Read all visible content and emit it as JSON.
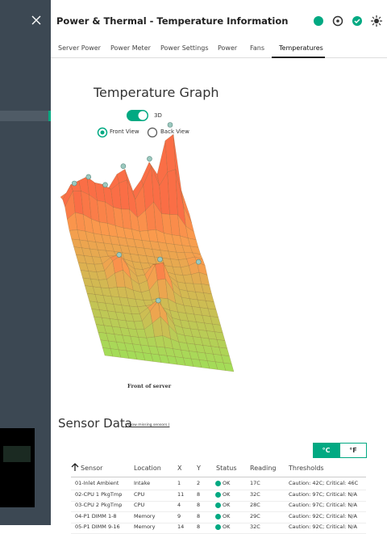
{
  "header": {
    "title": "Power & Thermal - Temperature Information"
  },
  "tabs": [
    "Server Power",
    "Power Meter",
    "Power Settings",
    "Power",
    "Fans",
    "Temperatures"
  ],
  "active_tab": "Temperatures",
  "graph": {
    "title": "Temperature Graph",
    "toggle_label": "3D",
    "views": [
      "Front View",
      "Back View"
    ],
    "caption": "Front of server"
  },
  "sensor_data": {
    "title": "Sensor Data",
    "link": "( show missing sensors )",
    "units": [
      "°C",
      "°F"
    ],
    "table": {
      "headers": [
        "Sensor",
        "Location",
        "X",
        "Y",
        "Status",
        "Reading",
        "Thresholds"
      ],
      "rows": [
        [
          "01-Inlet Ambient",
          "Intake",
          "1",
          "2",
          "OK",
          "17C",
          "Caution: 42C; Critical: 46C"
        ],
        [
          "02-CPU 1 PkgTmp",
          "CPU",
          "11",
          "8",
          "OK",
          "32C",
          "Caution: 97C; Critical: N/A"
        ],
        [
          "03-CPU 2 PkgTmp",
          "CPU",
          "4",
          "8",
          "OK",
          "28C",
          "Caution: 97C; Critical: N/A"
        ],
        [
          "04-P1 DIMM 1-8",
          "Memory",
          "9",
          "8",
          "OK",
          "29C",
          "Caution: 92C; Critical: N/A"
        ],
        [
          "05-P1 DIMM 9-16",
          "Memory",
          "14",
          "8",
          "OK",
          "32C",
          "Caution: 92C; Critical: N/A"
        ]
      ]
    }
  }
}
